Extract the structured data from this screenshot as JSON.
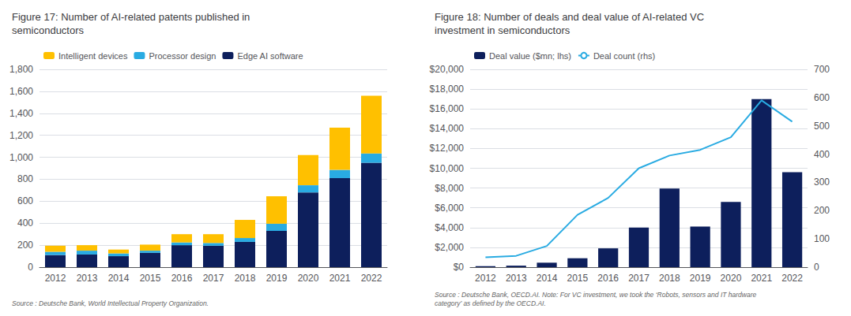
{
  "chart_data": [
    {
      "type": "bar",
      "title": "Figure 17: Number of AI-related patents published in\nsemiconductors",
      "annotations": [
        "Source : Deutsche Bank, World Intellectual Property Organization."
      ],
      "categories": [
        "2012",
        "2013",
        "2014",
        "2015",
        "2016",
        "2017",
        "2018",
        "2019",
        "2020",
        "2021",
        "2022"
      ],
      "series": [
        {
          "name": "Edge AI software",
          "color": "#0d1f5c",
          "values": [
            110,
            115,
            100,
            130,
            200,
            195,
            230,
            330,
            680,
            810,
            950
          ]
        },
        {
          "name": "Processor design",
          "color": "#29abe2",
          "values": [
            30,
            35,
            25,
            20,
            25,
            25,
            35,
            65,
            65,
            75,
            85
          ]
        },
        {
          "name": "Intelligent devices",
          "color": "#ffc000",
          "values": [
            55,
            50,
            35,
            55,
            75,
            80,
            165,
            250,
            275,
            385,
            525
          ]
        }
      ],
      "stacked": true,
      "ylim": [
        0,
        1800
      ],
      "yticks": [
        0,
        200,
        400,
        600,
        800,
        {
          "value": 1000,
          "label": "1,000"
        },
        {
          "value": 1200,
          "label": "1,200"
        },
        {
          "value": 1400,
          "label": "1,400"
        },
        {
          "value": 1600,
          "label": "1,600"
        },
        {
          "value": 1800,
          "label": "1,800"
        }
      ],
      "grid": true,
      "legend": "upper left"
    },
    {
      "type": "bar",
      "title": "Figure 18: Number of deals and deal value of AI-related VC\ninvestment in semiconductors",
      "annotations": [
        "Source : Deutsche Bank, OECD.AI. Note: For VC investment, we took the ‘Robots, sensors and IT hardware\ncategory’ as defined by the OECD.AI."
      ],
      "categories": [
        "2012",
        "2013",
        "2014",
        "2015",
        "2016",
        "2017",
        "2018",
        "2019",
        "2020",
        "2021",
        "2022"
      ],
      "series": [
        {
          "name": "Deal value ($mn; lhs)",
          "type": "bar",
          "color": "#0d1f5c",
          "values": [
            100,
            150,
            450,
            900,
            1900,
            4000,
            7950,
            4100,
            6600,
            17000,
            9600
          ]
        },
        {
          "name": "Deal count (rhs)",
          "type": "line",
          "color": "#29abe2",
          "axis": "y2",
          "values": [
            35,
            40,
            75,
            185,
            245,
            350,
            395,
            415,
            460,
            590,
            515
          ]
        }
      ],
      "ylim": [
        0,
        20000
      ],
      "yticks": [
        {
          "value": 0,
          "label": "$0"
        },
        {
          "value": 2000,
          "label": "$2,000"
        },
        {
          "value": 4000,
          "label": "$4,000"
        },
        {
          "value": 6000,
          "label": "$6,000"
        },
        {
          "value": 8000,
          "label": "$8,000"
        },
        {
          "value": 10000,
          "label": "$10,000"
        },
        {
          "value": 12000,
          "label": "$12,000"
        },
        {
          "value": 14000,
          "label": "$14,000"
        },
        {
          "value": 16000,
          "label": "$16,000"
        },
        {
          "value": 18000,
          "label": "$18,000"
        },
        {
          "value": 20000,
          "label": "$20,000"
        }
      ],
      "y2lim": [
        0,
        700
      ],
      "y2ticks": [
        0,
        100,
        200,
        300,
        400,
        500,
        600,
        700
      ],
      "grid": true,
      "legend": "upper left"
    }
  ]
}
